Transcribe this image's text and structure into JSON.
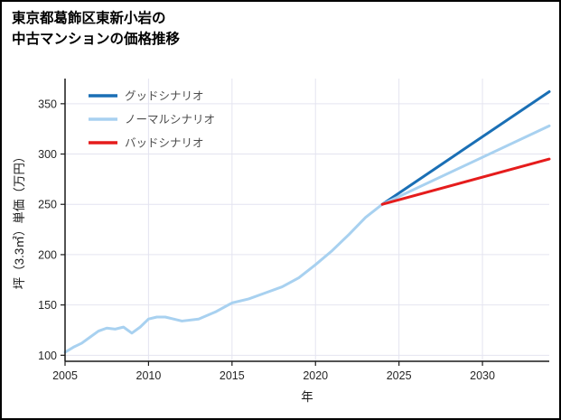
{
  "chart_data": {
    "type": "line",
    "title": "東京都葛飾区東新小岩の中古マンションの価格推移",
    "title_lines": [
      "東京都葛飾区東新小岩の",
      "中古マンションの価格推移"
    ],
    "xlabel": "年",
    "ylabel": "坪（3.3㎡）単価（万円）",
    "xlim": [
      2005,
      2034
    ],
    "ylim": [
      94,
      375
    ],
    "xticks": [
      2005,
      2010,
      2015,
      2020,
      2025,
      2030
    ],
    "yticks": [
      100,
      150,
      200,
      250,
      300,
      350
    ],
    "grid": true,
    "grid_color": "#e4e4f0",
    "axis_color": "#1a1a1a",
    "tick_label_color": "#262626",
    "legend_position": "top-left-inside",
    "legend_text_color": "#4d4d4d",
    "series": [
      {
        "name": "グッドシナリオ",
        "color": "#1a6fb5",
        "width": 3,
        "x": [
          2024,
          2034
        ],
        "y": [
          250,
          362
        ]
      },
      {
        "name": "ノーマルシナリオ",
        "color": "#a8d1f0",
        "width": 3,
        "x": [
          2005,
          2005.5,
          2006,
          2006.5,
          2007,
          2007.5,
          2008,
          2008.5,
          2009,
          2009.5,
          2010,
          2010.5,
          2011,
          2011.5,
          2012,
          2013,
          2014,
          2015,
          2016,
          2017,
          2018,
          2019,
          2020,
          2021,
          2022,
          2023,
          2024,
          2034
        ],
        "y": [
          103,
          108,
          112,
          118,
          124,
          127,
          126,
          128,
          122,
          128,
          136,
          138,
          138,
          136,
          134,
          136,
          143,
          152,
          156,
          162,
          168,
          177,
          190,
          204,
          220,
          237,
          250,
          328
        ]
      },
      {
        "name": "バッドシナリオ",
        "color": "#e51c1c",
        "width": 3,
        "x": [
          2024,
          2034
        ],
        "y": [
          250,
          295
        ]
      }
    ]
  }
}
